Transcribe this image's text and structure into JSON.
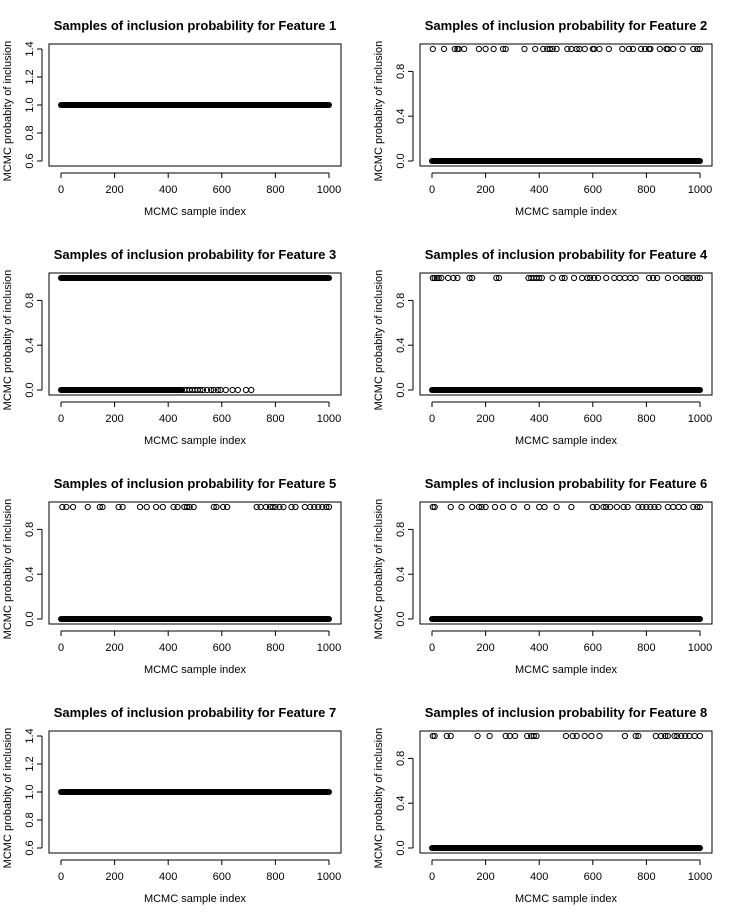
{
  "chart_data": [
    {
      "type": "scatter",
      "title": "Samples of inclusion probability for Feature  1",
      "xlabel": "MCMC sample index",
      "ylabel": "MCMC probabity of inclusion",
      "xlim": [
        0,
        1000
      ],
      "ylim": [
        0.6,
        1.4
      ],
      "xticks": [
        0,
        200,
        400,
        600,
        800,
        1000
      ],
      "yticks": [
        "0.6",
        "0.8",
        "1.0",
        "1.2",
        "1.4"
      ],
      "dense_rows": [
        {
          "y": 1.0,
          "x_range": [
            0,
            1000
          ]
        }
      ],
      "scattered_points": []
    },
    {
      "type": "scatter",
      "title": "Samples of inclusion probability for Feature  2",
      "xlabel": "MCMC sample index",
      "ylabel": "MCMC probabity of inclusion",
      "xlim": [
        0,
        1000
      ],
      "ylim": [
        0,
        1
      ],
      "xticks": [
        0,
        200,
        400,
        600,
        800,
        1000
      ],
      "yticks": [
        "0.0",
        "0.4",
        "0.8"
      ],
      "dense_rows": [
        {
          "y": 0.0,
          "x_range": [
            0,
            1000
          ]
        }
      ],
      "scattered_points": [
        {
          "y": 1,
          "x": [
            3,
            45,
            85,
            95,
            100,
            120,
            175,
            200,
            230,
            265,
            275,
            345,
            385,
            415,
            430,
            440,
            450,
            465,
            505,
            520,
            540,
            550,
            570,
            600,
            605,
            625,
            660,
            710,
            735,
            750,
            780,
            795,
            810,
            815,
            850,
            875,
            880,
            900,
            935,
            975,
            990,
            1000
          ]
        }
      ]
    },
    {
      "type": "scatter",
      "title": "Samples of inclusion probability for Feature  3",
      "xlabel": "MCMC sample index",
      "ylabel": "MCMC probabity of inclusion",
      "xlim": [
        0,
        1000
      ],
      "ylim": [
        0,
        1
      ],
      "xticks": [
        0,
        200,
        400,
        600,
        800,
        1000
      ],
      "yticks": [
        "0.0",
        "0.4",
        "0.8"
      ],
      "dense_rows": [
        {
          "y": 1.0,
          "x_range": [
            0,
            1000
          ]
        },
        {
          "y": 0.0,
          "x_range": [
            0,
            450
          ]
        }
      ],
      "scattered_points": [
        {
          "y": 0,
          "x": [
            460,
            470,
            480,
            490,
            500,
            510,
            520,
            530,
            545,
            560,
            570,
            585,
            595,
            615,
            640,
            660,
            690,
            710
          ]
        }
      ]
    },
    {
      "type": "scatter",
      "title": "Samples of inclusion probability for Feature  4",
      "xlabel": "MCMC sample index",
      "ylabel": "MCMC probabity of inclusion",
      "xlim": [
        0,
        1000
      ],
      "ylim": [
        0,
        1
      ],
      "xticks": [
        0,
        200,
        400,
        600,
        800,
        1000
      ],
      "yticks": [
        "0.0",
        "0.4",
        "0.8"
      ],
      "dense_rows": [
        {
          "y": 0.0,
          "x_range": [
            0,
            1000
          ]
        }
      ],
      "scattered_points": [
        {
          "y": 1,
          "x": [
            3,
            10,
            18,
            25,
            35,
            60,
            80,
            95,
            140,
            150,
            240,
            250,
            360,
            370,
            380,
            390,
            400,
            410,
            450,
            485,
            495,
            530,
            560,
            580,
            590,
            605,
            620,
            650,
            680,
            700,
            720,
            740,
            760,
            810,
            825,
            840,
            880,
            910,
            935,
            950,
            960,
            975,
            990,
            1000
          ]
        }
      ]
    },
    {
      "type": "scatter",
      "title": "Samples of inclusion probability for Feature  5",
      "xlabel": "MCMC sample index",
      "ylabel": "MCMC probabity of inclusion",
      "xlim": [
        0,
        1000
      ],
      "ylim": [
        0,
        1
      ],
      "xticks": [
        0,
        200,
        400,
        600,
        800,
        1000
      ],
      "yticks": [
        "0.0",
        "0.4",
        "0.8"
      ],
      "dense_rows": [
        {
          "y": 0.0,
          "x_range": [
            0,
            1000
          ]
        }
      ],
      "scattered_points": [
        {
          "y": 1,
          "x": [
            5,
            20,
            45,
            100,
            145,
            155,
            215,
            230,
            295,
            320,
            355,
            380,
            420,
            435,
            460,
            470,
            480,
            495,
            570,
            580,
            605,
            620,
            730,
            745,
            765,
            780,
            790,
            800,
            815,
            830,
            860,
            875,
            910,
            930,
            945,
            960,
            975,
            990,
            1000
          ]
        }
      ]
    },
    {
      "type": "scatter",
      "title": "Samples of inclusion probability for Feature  6",
      "xlabel": "MCMC sample index",
      "ylabel": "MCMC probabity of inclusion",
      "xlim": [
        0,
        1000
      ],
      "ylim": [
        0,
        1
      ],
      "xticks": [
        0,
        200,
        400,
        600,
        800,
        1000
      ],
      "yticks": [
        "0.0",
        "0.4",
        "0.8"
      ],
      "dense_rows": [
        {
          "y": 0.0,
          "x_range": [
            0,
            1000
          ]
        }
      ],
      "scattered_points": [
        {
          "y": 1,
          "x": [
            3,
            10,
            70,
            110,
            150,
            175,
            185,
            200,
            235,
            265,
            305,
            355,
            400,
            420,
            465,
            520,
            600,
            615,
            640,
            650,
            665,
            690,
            715,
            730,
            770,
            785,
            800,
            815,
            830,
            845,
            880,
            900,
            920,
            940,
            975,
            990,
            1000
          ]
        }
      ]
    },
    {
      "type": "scatter",
      "title": "Samples of inclusion probability for Feature  7",
      "xlabel": "MCMC sample index",
      "ylabel": "MCMC probabity of inclusion",
      "xlim": [
        0,
        1000
      ],
      "ylim": [
        0.6,
        1.4
      ],
      "xticks": [
        0,
        200,
        400,
        600,
        800,
        1000
      ],
      "yticks": [
        "0.6",
        "0.8",
        "1.0",
        "1.2",
        "1.4"
      ],
      "dense_rows": [
        {
          "y": 1.0,
          "x_range": [
            0,
            1000
          ]
        }
      ],
      "scattered_points": []
    },
    {
      "type": "scatter",
      "title": "Samples of inclusion probability for Feature  8",
      "xlabel": "MCMC sample index",
      "ylabel": "MCMC probabity of inclusion",
      "xlim": [
        0,
        1000
      ],
      "ylim": [
        0,
        1
      ],
      "xticks": [
        0,
        200,
        400,
        600,
        800,
        1000
      ],
      "yticks": [
        "0.0",
        "0.4",
        "0.8"
      ],
      "dense_rows": [
        {
          "y": 0.0,
          "x_range": [
            0,
            1000
          ]
        }
      ],
      "scattered_points": [
        {
          "y": 1,
          "x": [
            3,
            10,
            55,
            70,
            170,
            215,
            275,
            290,
            310,
            355,
            370,
            380,
            390,
            500,
            525,
            540,
            570,
            595,
            625,
            720,
            760,
            770,
            835,
            855,
            870,
            880,
            905,
            915,
            930,
            945,
            960,
            980,
            1000
          ]
        }
      ]
    }
  ]
}
